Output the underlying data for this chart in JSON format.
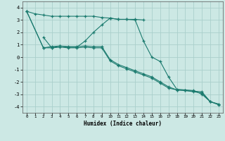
{
  "xlabel": "Humidex (Indice chaleur)",
  "background_color": "#cce8e4",
  "grid_color": "#aacfcb",
  "line_color": "#1a7a6e",
  "xlim": [
    -0.5,
    23.5
  ],
  "ylim": [
    -4.5,
    4.5
  ],
  "xticks": [
    0,
    1,
    2,
    3,
    4,
    5,
    6,
    7,
    8,
    9,
    10,
    11,
    12,
    13,
    14,
    15,
    16,
    17,
    18,
    19,
    20,
    21,
    22,
    23
  ],
  "yticks": [
    -4,
    -3,
    -2,
    -1,
    0,
    1,
    2,
    3,
    4
  ],
  "series": [
    {
      "x": [
        0,
        1,
        2,
        3,
        4,
        5,
        6,
        7,
        8,
        9,
        10,
        11,
        12,
        13,
        14
      ],
      "y": [
        3.7,
        3.5,
        3.4,
        3.3,
        3.3,
        3.3,
        3.3,
        3.3,
        3.3,
        3.2,
        3.15,
        3.05,
        3.05,
        3.05,
        3.0
      ]
    },
    {
      "x": [
        2,
        3,
        4,
        5,
        6,
        7,
        8,
        9,
        10,
        11,
        12,
        13,
        14,
        15,
        16,
        17,
        18,
        19,
        20,
        21,
        22,
        23
      ],
      "y": [
        1.6,
        0.75,
        0.9,
        0.8,
        0.8,
        1.3,
        2.0,
        2.6,
        3.15,
        3.05,
        3.05,
        3.0,
        1.3,
        0.0,
        -0.35,
        -1.6,
        -2.6,
        -2.65,
        -2.7,
        -3.0,
        -3.6,
        -3.8
      ]
    },
    {
      "x": [
        0,
        2,
        3,
        4,
        5,
        6,
        7,
        8,
        9,
        10,
        11,
        12,
        13,
        14,
        15,
        16,
        17,
        18,
        19,
        20,
        21,
        22,
        23
      ],
      "y": [
        3.7,
        0.75,
        0.85,
        0.9,
        0.85,
        0.85,
        0.9,
        0.85,
        0.85,
        -0.2,
        -0.6,
        -0.85,
        -1.1,
        -1.35,
        -1.6,
        -2.0,
        -2.4,
        -2.65,
        -2.7,
        -2.75,
        -2.8,
        -3.6,
        -3.8
      ]
    },
    {
      "x": [
        0,
        2,
        3,
        4,
        5,
        6,
        7,
        8,
        9,
        10,
        11,
        12,
        13,
        14,
        15,
        16,
        17,
        18,
        19,
        20,
        21,
        22,
        23
      ],
      "y": [
        3.7,
        0.75,
        0.75,
        0.8,
        0.75,
        0.75,
        0.8,
        0.75,
        0.75,
        -0.3,
        -0.7,
        -0.95,
        -1.2,
        -1.45,
        -1.7,
        -2.1,
        -2.5,
        -2.65,
        -2.7,
        -2.8,
        -2.9,
        -3.6,
        -3.85
      ]
    }
  ]
}
